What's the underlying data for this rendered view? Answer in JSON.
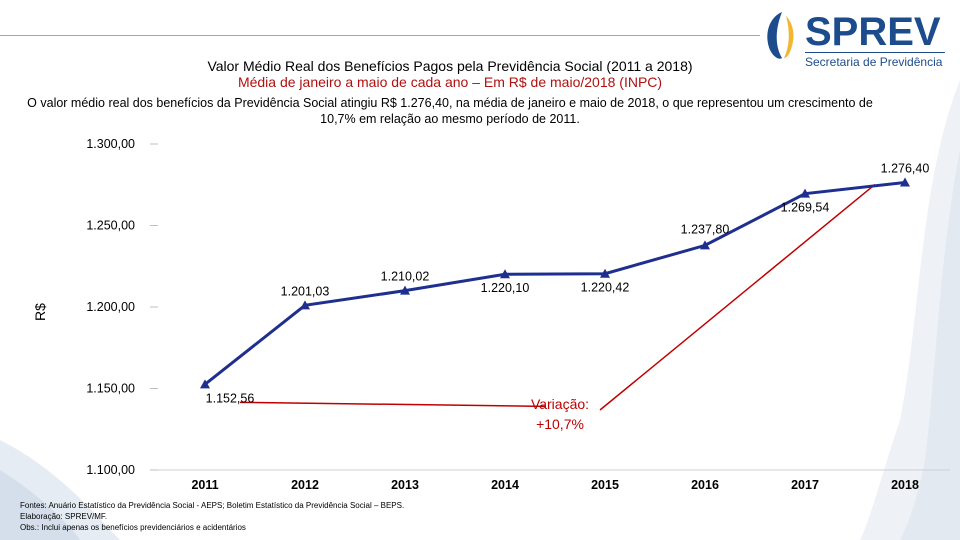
{
  "header": {
    "title": "Valor Médio Real dos Benefícios Pagos pela Previdência Social (2011 a 2018)",
    "subtitle": "Média de janeiro a maio de cada ano – Em R$ de maio/2018 (INPC)",
    "description": "O valor médio real dos benefícios da Previdência Social atingiu R$ 1.276,40, na média de janeiro e maio de 2018, o que representou um crescimento de 10,7% em relação ao mesmo período de 2011."
  },
  "logo": {
    "wordmark": "SPREV",
    "subtitle": "Secretaria de Previdência",
    "colors": {
      "primary": "#1c4c8c",
      "accent": "#f2b632"
    }
  },
  "chart_data": {
    "type": "line",
    "title": "Valor Médio Real dos Benefícios Pagos pela Previdência Social (2011 a 2018)",
    "ylabel": "R$",
    "xlabel": "",
    "categories": [
      "2011",
      "2012",
      "2013",
      "2014",
      "2015",
      "2016",
      "2017",
      "2018"
    ],
    "series": [
      {
        "name": "Valor médio real",
        "values": [
          1152.56,
          1201.03,
          1210.02,
          1220.1,
          1220.42,
          1237.8,
          1269.54,
          1276.4
        ],
        "labels": [
          "1.152,56",
          "1.201,03",
          "1.210,02",
          "1.220,10",
          "1.220,42",
          "1.237,80",
          "1.269,54",
          "1.276,40"
        ],
        "color": "#1f2f8f"
      }
    ],
    "ylim": [
      1100,
      1300
    ],
    "yticks": [
      1100,
      1150,
      1200,
      1250,
      1300
    ],
    "ytick_labels": [
      "1.100,00",
      "1.150,00",
      "1.200,00",
      "1.250,00",
      "1.300,00"
    ],
    "grid": false,
    "annotation": {
      "line1": "Variação:",
      "line2": "+10,7%",
      "color": "#c00000"
    }
  },
  "footnotes": {
    "sources": "Fontes: Anuário Estatístico da Previdência Social - AEPS; Boletim Estatístico da Previdência Social – BEPS.",
    "prepared": "Elaboração: SPREV/MF.",
    "note": "Obs.: Inclui apenas os benefícios previdenciários e acidentários"
  }
}
